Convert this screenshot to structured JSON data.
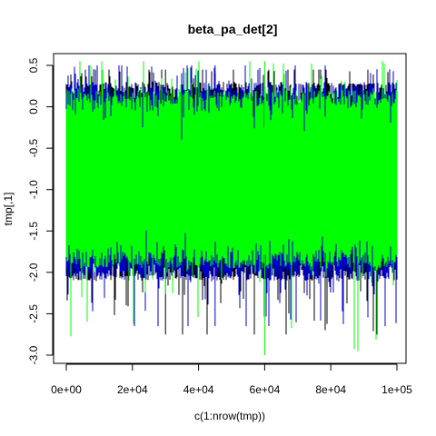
{
  "chart_data": {
    "type": "line",
    "title": "beta_pa_det[2]",
    "xlabel": "c(1:nrow(tmp))",
    "ylabel": "tmp[,1]",
    "xlim": [
      0,
      100000
    ],
    "ylim": [
      -3.0,
      0.5
    ],
    "x_ticks": [
      0,
      20000,
      40000,
      60000,
      80000,
      100000
    ],
    "x_tick_labels": [
      "0e+00",
      "2e+04",
      "4e+04",
      "6e+04",
      "8e+04",
      "1e+05"
    ],
    "y_ticks": [
      -3.0,
      -2.5,
      -2.0,
      -1.5,
      -1.0,
      -0.5,
      0.0,
      0.5
    ],
    "y_tick_labels": [
      "-3.0",
      "-2.5",
      "-2.0",
      "-1.5",
      "-1.0",
      "-0.5",
      "0.0",
      "0.5"
    ],
    "grid": false,
    "legend": "none",
    "series": [
      {
        "color": "#000000",
        "n_points": 100000,
        "center": -0.95,
        "typical_range": [
          -2.1,
          0.3
        ],
        "extremes": [
          -2.75,
          0.45
        ]
      },
      {
        "color": "#0000cc",
        "n_points": 100000,
        "center": -0.95,
        "typical_range": [
          -2.1,
          0.3
        ],
        "extremes": [
          -2.65,
          0.5
        ]
      },
      {
        "color": "#00ff00",
        "n_points": 100000,
        "center": -0.95,
        "typical_range": [
          -1.95,
          0.2
        ],
        "extremes": [
          -3.0,
          0.55
        ]
      }
    ]
  }
}
